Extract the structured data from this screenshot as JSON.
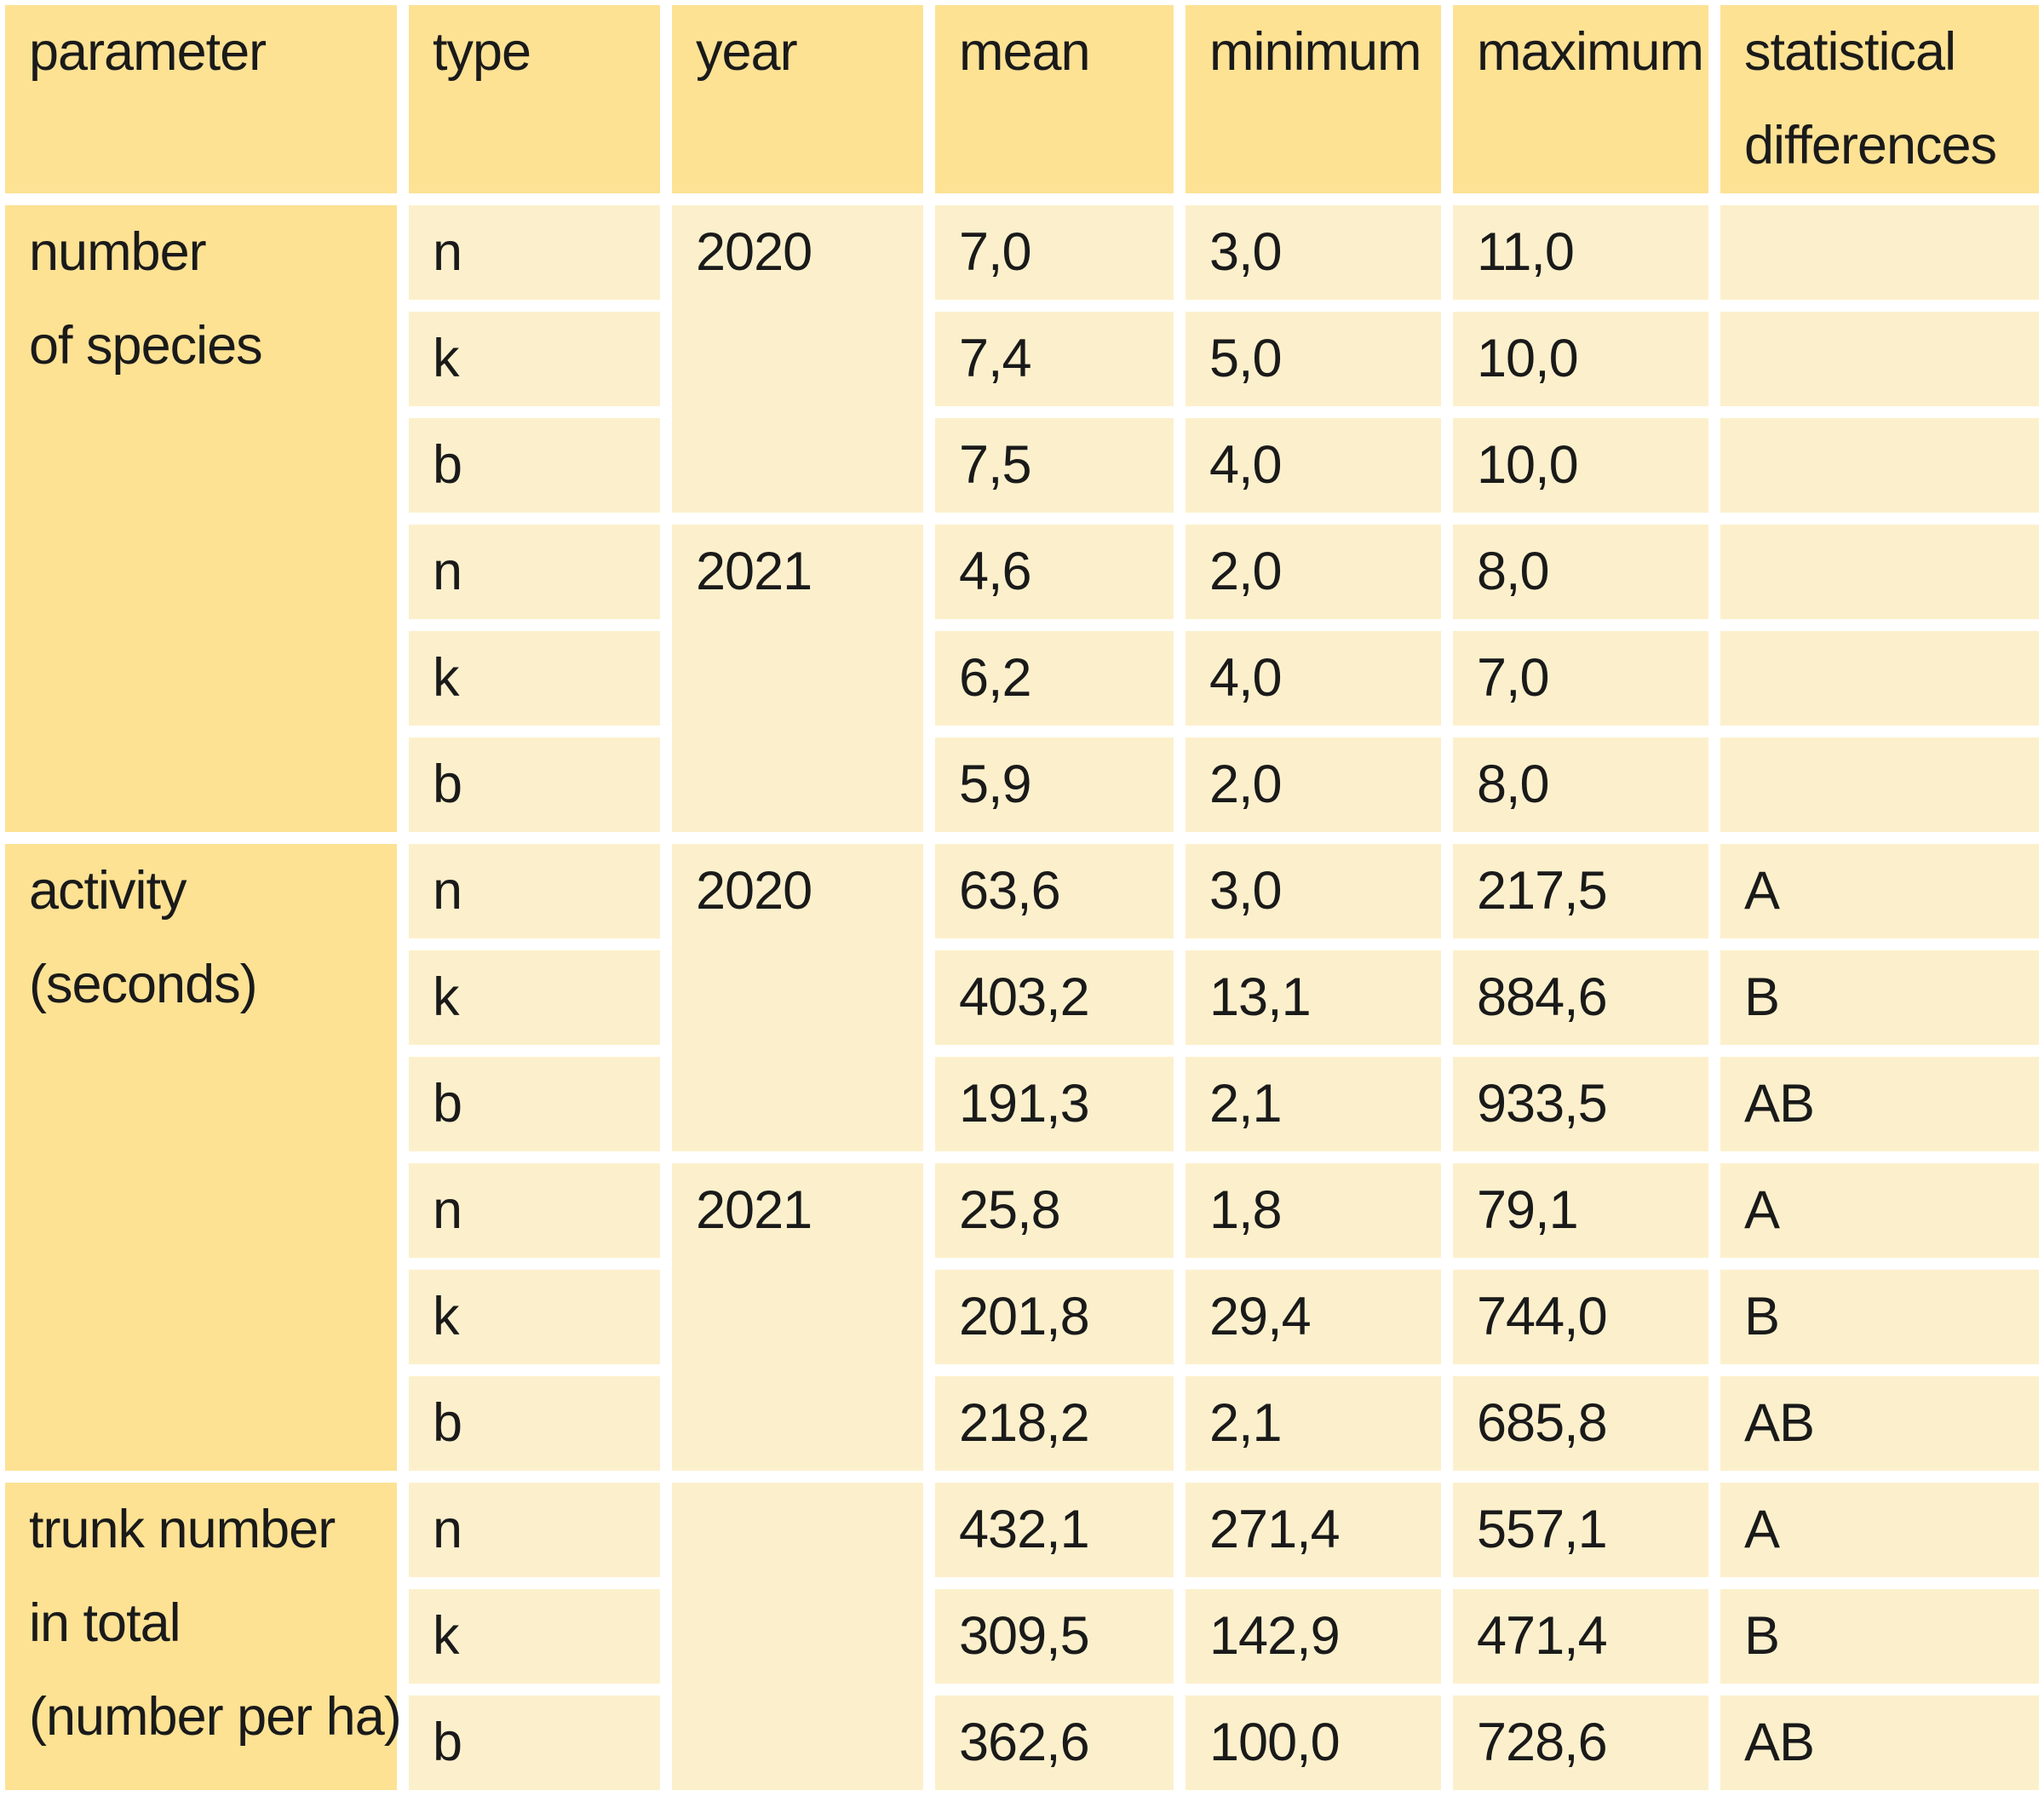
{
  "colors": {
    "header_bg": "#FDE294",
    "parameter_column_bg": "#FDE294",
    "cell_bg": "#FCF0CC",
    "gap": "#FFFFFF",
    "text": "#1A1A1A"
  },
  "table": {
    "header": {
      "parameter": "parameter",
      "type": "type",
      "year": "year",
      "mean": "mean",
      "minimum": "minimum",
      "maximum": "maximum",
      "statistical_differences": "statistical\ndifferences"
    },
    "groups": [
      {
        "parameter": "number\nof species",
        "rows": [
          {
            "type": "n",
            "year": "2020",
            "mean": "7,0",
            "minimum": "3,0",
            "maximum": "11,0",
            "stat": ""
          },
          {
            "type": "k",
            "mean": "7,4",
            "minimum": "5,0",
            "maximum": "10,0",
            "stat": ""
          },
          {
            "type": "b",
            "mean": "7,5",
            "minimum": "4,0",
            "maximum": "10,0",
            "stat": ""
          },
          {
            "type": "n",
            "year": "2021",
            "mean": "4,6",
            "minimum": "2,0",
            "maximum": "8,0",
            "stat": ""
          },
          {
            "type": "k",
            "mean": "6,2",
            "minimum": "4,0",
            "maximum": "7,0",
            "stat": ""
          },
          {
            "type": "b",
            "mean": "5,9",
            "minimum": "2,0",
            "maximum": "8,0",
            "stat": ""
          }
        ]
      },
      {
        "parameter": "activity\n(seconds)",
        "rows": [
          {
            "type": "n",
            "year": "2020",
            "mean": "63,6",
            "minimum": "3,0",
            "maximum": "217,5",
            "stat": "A"
          },
          {
            "type": "k",
            "mean": "403,2",
            "minimum": "13,1",
            "maximum": "884,6",
            "stat": "B"
          },
          {
            "type": "b",
            "mean": "191,3",
            "minimum": "2,1",
            "maximum": "933,5",
            "stat": "AB"
          },
          {
            "type": "n",
            "year": "2021",
            "mean": "25,8",
            "minimum": "1,8",
            "maximum": "79,1",
            "stat": "A"
          },
          {
            "type": "k",
            "mean": "201,8",
            "minimum": "29,4",
            "maximum": "744,0",
            "stat": "B"
          },
          {
            "type": "b",
            "mean": "218,2",
            "minimum": "2,1",
            "maximum": "685,8",
            "stat": "AB"
          }
        ]
      },
      {
        "parameter": "trunk number\nin total\n(number per ha)",
        "year": "",
        "rows": [
          {
            "type": "n",
            "mean": "432,1",
            "minimum": "271,4",
            "maximum": "557,1",
            "stat": "A"
          },
          {
            "type": "k",
            "mean": "309,5",
            "minimum": "142,9",
            "maximum": "471,4",
            "stat": "B"
          },
          {
            "type": "b",
            "mean": "362,6",
            "minimum": "100,0",
            "maximum": "728,6",
            "stat": "AB"
          }
        ]
      }
    ]
  }
}
